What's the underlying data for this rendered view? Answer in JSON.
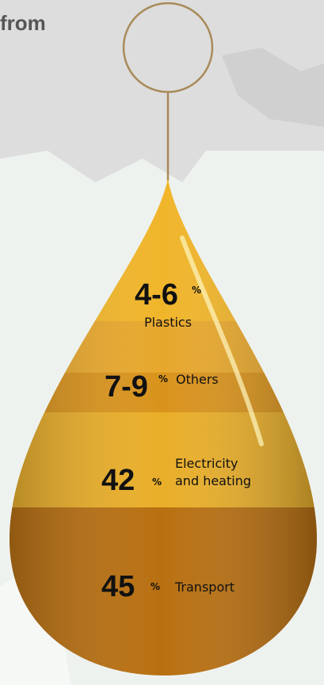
{
  "heading": "from",
  "unit": "%",
  "segments": [
    {
      "value": "4-6",
      "label": "Plastics"
    },
    {
      "value": "7-9",
      "label": "Others"
    },
    {
      "value": "42",
      "label": [
        "Electricity",
        "and heating"
      ]
    },
    {
      "value": "45",
      "label": "Transport"
    }
  ]
}
